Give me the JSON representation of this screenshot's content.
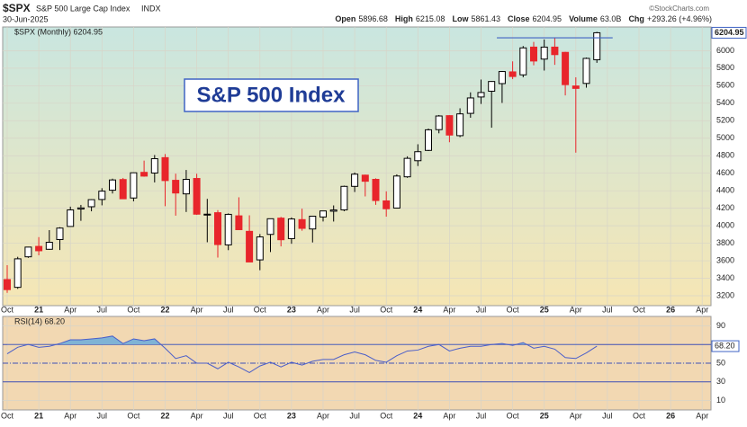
{
  "header": {
    "symbol": "$SPX",
    "description": "S&P 500 Large Cap Index",
    "exchange": "INDX",
    "date": "30-Jun-2025",
    "quote": [
      [
        "Open",
        "5896.68"
      ],
      [
        "High",
        "6215.08"
      ],
      [
        "Low",
        "5861.43"
      ],
      [
        "Close",
        "6204.95"
      ],
      [
        "Volume",
        "63.0B"
      ],
      [
        "Chg",
        "+293.26 (+4.96%)"
      ]
    ],
    "credit": "©StockCharts.com"
  },
  "chart_data": [
    {
      "type": "candlestick",
      "name": "$SPX (Monthly) 6204.95",
      "annotation": "S&P 500 Index",
      "categories": [
        "Oct",
        null,
        null,
        "21",
        null,
        null,
        "Apr",
        null,
        null,
        "Jul",
        null,
        null,
        "Oct",
        null,
        null,
        "22",
        null,
        null,
        "Apr",
        null,
        null,
        "Jul",
        null,
        null,
        "Oct",
        null,
        null,
        "23",
        null,
        null,
        "Apr",
        null,
        null,
        "Jul",
        null,
        null,
        "Oct",
        null,
        null,
        "24",
        null,
        null,
        "Apr",
        null,
        null,
        "Jul",
        null,
        null,
        "Oct",
        null,
        null,
        "25",
        null,
        null,
        "Apr",
        null,
        null,
        "Jul",
        null,
        null,
        "Oct",
        null,
        null,
        "26",
        null,
        null,
        "Apr"
      ],
      "open": [
        3385,
        3296,
        3645,
        3764,
        3731,
        3842,
        3992,
        4191,
        4217,
        4300,
        4406,
        4528,
        4317,
        4610,
        4602,
        4778,
        4519,
        4364,
        4540,
        4130,
        4149,
        3781,
        4113,
        3936,
        3610,
        3901,
        4087,
        3853,
        4070,
        3963,
        4100,
        4166,
        4181,
        4450,
        4578,
        4530,
        4284,
        4202,
        4559,
        4743,
        4861,
        5098,
        5258,
        5029,
        5284,
        5471,
        5537,
        5624,
        5758,
        5724,
        6041,
        5904,
        6041,
        5981,
        5597,
        5626,
        5896.68,
        null,
        null,
        null,
        null,
        null,
        null,
        null,
        null,
        null,
        null
      ],
      "high": [
        3549,
        3645,
        3760,
        3870,
        3950,
        3983,
        4218,
        4238,
        4302,
        4429,
        4538,
        4546,
        4608,
        4744,
        4808,
        4819,
        4595,
        4637,
        4594,
        4307,
        4178,
        4141,
        4325,
        4119,
        3905,
        4080,
        4101,
        4095,
        4195,
        4110,
        4170,
        4232,
        4458,
        4608,
        4584,
        4541,
        4393,
        4587,
        4793,
        4931,
        5111,
        5265,
        5264,
        5342,
        5524,
        5670,
        5652,
        5768,
        5878,
        6053,
        6100,
        6128,
        6147,
        5987,
        5696,
        5922,
        6215.08,
        null,
        null,
        null,
        null,
        null,
        null,
        null,
        null,
        null,
        null
      ],
      "low": [
        3233,
        3279,
        3633,
        3662,
        3725,
        3723,
        3992,
        4056,
        4165,
        4233,
        4368,
        4306,
        4279,
        4560,
        4495,
        4223,
        4115,
        4157,
        4124,
        3811,
        3637,
        3721,
        3955,
        3585,
        3492,
        3699,
        3764,
        3794,
        3943,
        3809,
        4049,
        4048,
        4166,
        4385,
        4335,
        4238,
        4104,
        4198,
        4547,
        4682,
        4853,
        5056,
        4954,
        5012,
        5234,
        5391,
        5120,
        5403,
        5675,
        5696,
        5833,
        5773,
        5838,
        5489,
        4835,
        5578,
        5861.43,
        null,
        null,
        null,
        null,
        null,
        null,
        null,
        null,
        null,
        null
      ],
      "close": [
        3270,
        3622,
        3756,
        3714,
        3811,
        3973,
        4181,
        4204,
        4298,
        4395,
        4523,
        4308,
        4605,
        4567,
        4766,
        4516,
        4374,
        4530,
        4132,
        4132,
        3785,
        4130,
        3955,
        3586,
        3872,
        4080,
        3840,
        4077,
        3970,
        4109,
        4169,
        4180,
        4450,
        4589,
        4508,
        4288,
        4194,
        4568,
        4770,
        4846,
        5096,
        5254,
        5036,
        5278,
        5460,
        5522,
        5648,
        5762,
        5705,
        6032,
        5882,
        6041,
        5955,
        5612,
        5569,
        5912,
        6204.95,
        null,
        null,
        null,
        null,
        null,
        null,
        null,
        null,
        null,
        null
      ],
      "up_color": "#000000",
      "down_color": "#e8252b",
      "hline": {
        "value": 6147,
        "x": [
          46.5,
          57.5
        ],
        "color": "#3f63c4"
      },
      "ylim": [
        3087,
        6271
      ],
      "yticks": [
        3200,
        3400,
        3600,
        3800,
        4000,
        4200,
        4400,
        4600,
        4800,
        5000,
        5200,
        5400,
        5600,
        5800,
        6000
      ],
      "grid": true
    },
    {
      "type": "line",
      "categories": [
        "Oct",
        null,
        null,
        "21",
        null,
        null,
        "Apr",
        null,
        null,
        "Jul",
        null,
        null,
        "Oct",
        null,
        null,
        "22",
        null,
        null,
        "Apr",
        null,
        null,
        "Jul",
        null,
        null,
        "Oct",
        null,
        null,
        "23",
        null,
        null,
        "Apr",
        null,
        null,
        "Jul",
        null,
        null,
        "Oct",
        null,
        null,
        "24",
        null,
        null,
        "Apr",
        null,
        null,
        "Jul",
        null,
        null,
        "Oct",
        null,
        null,
        "25",
        null,
        null,
        "Apr",
        null,
        null,
        "Jul",
        null,
        null,
        "Oct",
        null,
        null,
        "26",
        null,
        null,
        "Apr"
      ],
      "series": [
        {
          "name": "RSI(14) 68.20",
          "color": "#4a5ec9",
          "values": [
            60,
            67,
            70,
            67,
            68,
            71,
            75,
            75,
            76,
            77,
            79,
            71,
            76,
            74,
            76,
            66,
            55,
            58,
            50,
            50,
            44,
            51,
            46,
            40,
            47,
            51,
            46,
            51,
            48,
            52,
            54,
            54,
            59,
            62,
            59,
            53,
            51,
            58,
            63,
            64,
            68,
            70,
            63,
            66,
            68,
            68,
            70,
            71,
            69,
            72,
            66,
            68,
            65,
            56,
            55,
            61,
            68.2,
            null,
            null,
            null,
            null,
            null,
            null,
            null,
            null,
            null,
            null
          ],
          "value_labels": [
            null,
            null,
            null,
            null,
            null,
            null,
            null,
            null,
            null,
            null,
            null,
            null,
            null,
            null,
            null,
            null,
            null,
            null,
            null,
            null,
            null,
            null,
            null,
            null,
            null,
            null,
            null,
            null,
            null,
            null,
            null,
            null,
            null,
            null,
            null,
            null,
            null,
            null,
            null,
            null,
            null,
            null,
            null,
            null,
            null,
            null,
            null,
            null,
            null,
            null,
            null,
            null,
            null,
            null,
            null,
            null,
            "68.20",
            null,
            null,
            null,
            null,
            null,
            null,
            null,
            null,
            null,
            null
          ]
        }
      ],
      "reference_lines": [
        70,
        50,
        30
      ],
      "shade_above": 70,
      "shade_color": "#7fb3d5",
      "ylim": [
        0,
        100
      ],
      "yticks": [
        10,
        30,
        50,
        70,
        90
      ],
      "grid": true
    }
  ]
}
